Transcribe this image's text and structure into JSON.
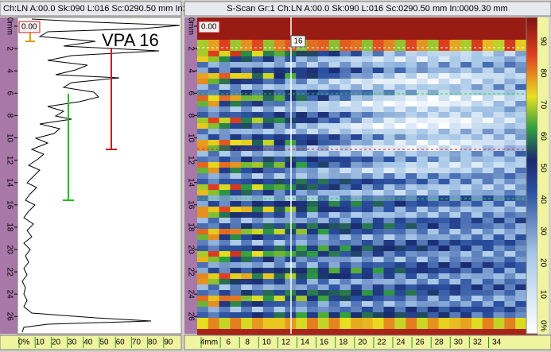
{
  "a_scan": {
    "header": "Ch:LN A:00.0 Sk:090 L:016 Sc:0290.50 mm In:",
    "gate_label": "0.00",
    "annotation": "VPA 16",
    "depth_labels": [
      "0mm",
      "2",
      "4",
      "6",
      "8",
      "10",
      "12",
      "14",
      "16",
      "18",
      "20",
      "22",
      "24",
      "26"
    ],
    "amplitude_labels": [
      "0%",
      "10",
      "20",
      "30",
      "40",
      "50",
      "60",
      "70",
      "80",
      "90"
    ]
  },
  "s_scan": {
    "header": "S-Scan Gr:1 Ch:LN A:00.0 Sk:090 L:016 Sc:0290.50 mm In:0009.30 mm",
    "gate_label": "0.00",
    "cursor_label": "16",
    "depth_labels": [
      "0mm",
      "2",
      "4",
      "6",
      "8",
      "10",
      "12",
      "14",
      "16",
      "18",
      "20",
      "22",
      "24",
      "26"
    ],
    "index_labels": [
      "4mm",
      "6",
      "8",
      "10",
      "12",
      "14",
      "16",
      "18",
      "20",
      "22",
      "24",
      "26",
      "28",
      "30",
      "32",
      "34"
    ],
    "color_scale_labels": [
      "90",
      "80",
      "70",
      "60",
      "50",
      "40",
      "30",
      "20",
      "10",
      "0%"
    ]
  }
}
